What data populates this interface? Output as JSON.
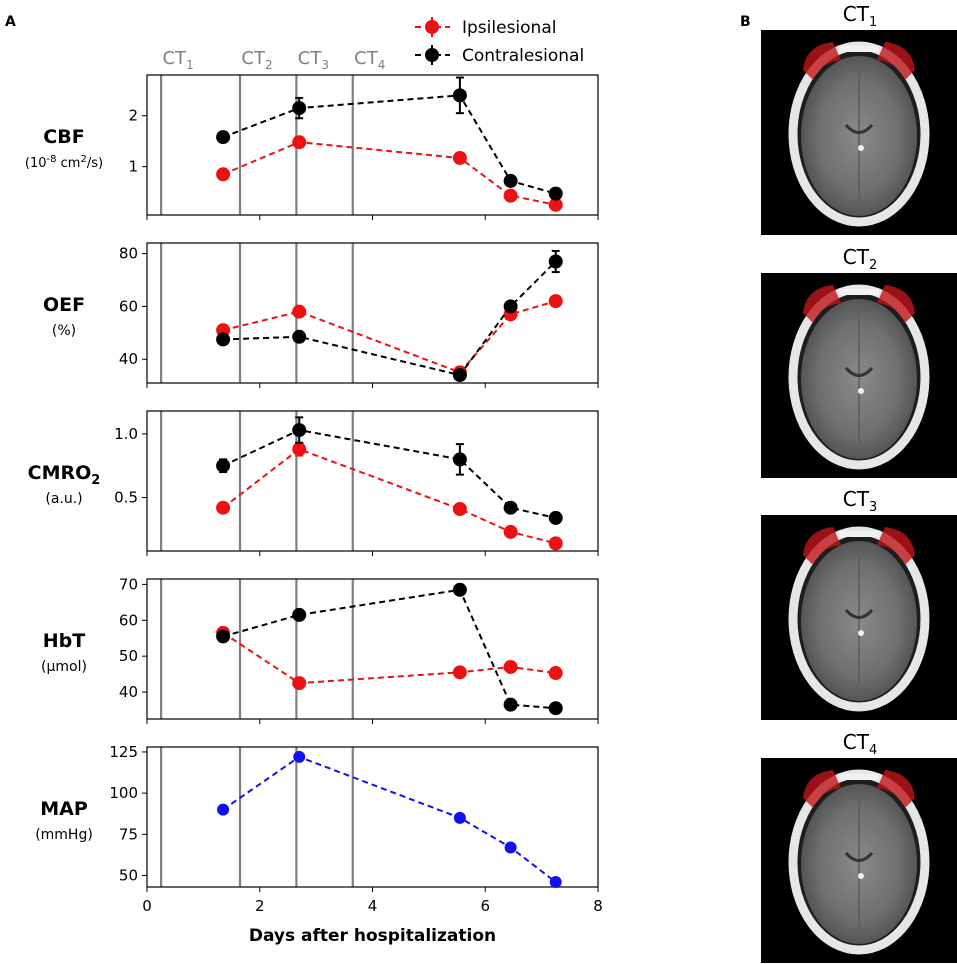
{
  "panel_labels": {
    "a": "A",
    "b": "B"
  },
  "legend": {
    "ipsilesional": "Ipsilesional",
    "contralesional": "Contralesional"
  },
  "colors": {
    "ipsilesional": "#ee1111",
    "contralesional": "#000000",
    "map": "#1111ee",
    "ct_line": "#808080",
    "region": "#c0171c"
  },
  "ct_markers": [
    {
      "base": "CT",
      "sub": "1",
      "day": 0.25
    },
    {
      "base": "CT",
      "sub": "2",
      "day": 1.65
    },
    {
      "base": "CT",
      "sub": "3",
      "day": 2.65
    },
    {
      "base": "CT",
      "sub": "4",
      "day": 3.65
    }
  ],
  "xaxis": {
    "label": "Days after hospitalization",
    "range": [
      0,
      8
    ],
    "ticks": [
      "0",
      "2",
      "4",
      "6",
      "8"
    ]
  },
  "chart_data": [
    {
      "type": "line",
      "id": "cbf",
      "ylabel": {
        "main": "CBF",
        "unit_pre": "(10",
        "unit_sup1": "-8",
        "unit_mid": " cm",
        "unit_sup2": "2",
        "unit_post": "/s)"
      },
      "ylim": [
        0.05,
        2.8
      ],
      "yticks": [
        1,
        2
      ],
      "x": [
        1.35,
        2.7,
        5.55,
        6.45,
        7.25
      ],
      "series": [
        {
          "name": "Ipsilesional",
          "values": [
            0.85,
            1.48,
            1.17,
            0.43,
            0.25
          ],
          "err": [
            0,
            0.1,
            0,
            0,
            0
          ]
        },
        {
          "name": "Contralesional",
          "values": [
            1.58,
            2.15,
            2.4,
            0.72,
            0.47
          ],
          "err": [
            0.1,
            0.2,
            0.35,
            0,
            0
          ]
        }
      ]
    },
    {
      "type": "line",
      "id": "oef",
      "ylabel": {
        "main": "OEF",
        "unit": "(%)"
      },
      "ylim": [
        31,
        84
      ],
      "yticks": [
        40,
        60,
        80
      ],
      "x": [
        1.35,
        2.7,
        5.55,
        6.45,
        7.25
      ],
      "series": [
        {
          "name": "Ipsilesional",
          "values": [
            51,
            58,
            35,
            57,
            62
          ],
          "err": [
            0,
            0,
            0,
            0,
            0
          ]
        },
        {
          "name": "Contralesional",
          "values": [
            47.5,
            48.5,
            34,
            60,
            77
          ],
          "err": [
            0,
            0,
            0,
            0,
            4
          ]
        }
      ]
    },
    {
      "type": "line",
      "id": "cmro2",
      "ylabel": {
        "main": "CMRO",
        "main_sub": "2",
        "unit": "(a.u.)"
      },
      "ylim": [
        0.08,
        1.18
      ],
      "yticks": [
        0.5,
        1.0
      ],
      "ytick_labels": [
        "0.5",
        "1.0"
      ],
      "x": [
        1.35,
        2.7,
        5.55,
        6.45,
        7.25
      ],
      "series": [
        {
          "name": "Ipsilesional",
          "values": [
            0.42,
            0.88,
            0.41,
            0.23,
            0.14
          ],
          "err": [
            0,
            0.05,
            0,
            0,
            0
          ]
        },
        {
          "name": "Contralesional",
          "values": [
            0.75,
            1.03,
            0.8,
            0.42,
            0.34
          ],
          "err": [
            0.05,
            0.1,
            0.12,
            0,
            0
          ]
        }
      ]
    },
    {
      "type": "line",
      "id": "hbt",
      "ylabel": {
        "main": "HbT",
        "unit": "(µmol)"
      },
      "ylim": [
        32.5,
        71.5
      ],
      "yticks": [
        40,
        50,
        60,
        70
      ],
      "x": [
        1.35,
        2.7,
        5.55,
        6.45,
        7.25
      ],
      "series": [
        {
          "name": "Ipsilesional",
          "values": [
            56.5,
            42.5,
            45.5,
            47,
            45.3
          ],
          "err": [
            0,
            0,
            0,
            0,
            0
          ]
        },
        {
          "name": "Contralesional",
          "values": [
            55.5,
            61.5,
            68.5,
            36.5,
            35.5
          ],
          "err": [
            0,
            0,
            0,
            0,
            0
          ]
        }
      ]
    },
    {
      "type": "line",
      "id": "map",
      "ylabel": {
        "main": "MAP",
        "unit": "(mmHg)"
      },
      "ylim": [
        43,
        128
      ],
      "yticks": [
        50,
        75,
        100,
        125
      ],
      "x": [
        1.35,
        2.7,
        5.55,
        6.45,
        7.25
      ],
      "series": [
        {
          "name": "MAP",
          "values": [
            90,
            122,
            85,
            67,
            46
          ],
          "err": [
            0,
            0,
            0,
            0,
            0
          ]
        }
      ]
    }
  ]
}
